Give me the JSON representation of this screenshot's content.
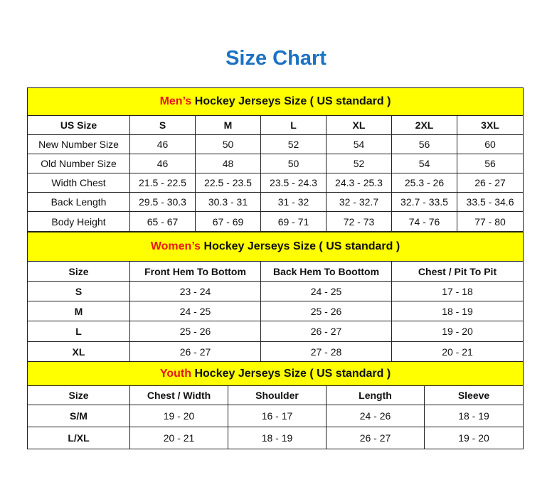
{
  "title": "Size Chart",
  "colors": {
    "title": "#1d72c2",
    "banner": "#ffff00",
    "highlight": "#e8161b"
  },
  "mens": {
    "banner_highlight": "Men’s",
    "banner_rest": " Hockey Jerseys Size ( US standard )",
    "header": [
      "US Size",
      "S",
      "M",
      "L",
      "XL",
      "2XL",
      "3XL"
    ],
    "rows": [
      [
        "New Number Size",
        "46",
        "50",
        "52",
        "54",
        "56",
        "60"
      ],
      [
        "Old Number Size",
        "46",
        "48",
        "50",
        "52",
        "54",
        "56"
      ],
      [
        "Width Chest",
        "21.5 - 22.5",
        "22.5 - 23.5",
        "23.5 - 24.3",
        "24.3 - 25.3",
        "25.3 - 26",
        "26 - 27"
      ],
      [
        "Back Length",
        "29.5 - 30.3",
        "30.3 - 31",
        "31 - 32",
        "32 - 32.7",
        "32.7 - 33.5",
        "33.5 - 34.6"
      ],
      [
        "Body Height",
        "65 - 67",
        "67 - 69",
        "69 - 71",
        "72 - 73",
        "74 - 76",
        "77 - 80"
      ]
    ]
  },
  "womens": {
    "banner_highlight": "Women’s",
    "banner_rest": " Hockey Jerseys Size ( US standard )",
    "header": [
      "Size",
      "Front Hem To Bottom",
      "Back Hem To Boottom",
      "Chest / Pit To Pit"
    ],
    "rows": [
      [
        "S",
        "23 - 24",
        "24 - 25",
        "17 - 18"
      ],
      [
        "M",
        "24 - 25",
        "25 - 26",
        "18 - 19"
      ],
      [
        "L",
        "25 - 26",
        "26 - 27",
        "19 - 20"
      ],
      [
        "XL",
        "26 - 27",
        "27 - 28",
        "20 - 21"
      ]
    ]
  },
  "youth": {
    "banner_highlight": "Youth",
    "banner_rest": " Hockey Jerseys Size ( US standard )",
    "header": [
      "Size",
      "Chest / Width",
      "Shoulder",
      "Length",
      "Sleeve"
    ],
    "rows": [
      [
        "S/M",
        "19 - 20",
        "16 - 17",
        "24 - 26",
        "18 - 19"
      ],
      [
        "L/XL",
        "20 - 21",
        "18 - 19",
        "26 - 27",
        "19 - 20"
      ]
    ]
  }
}
